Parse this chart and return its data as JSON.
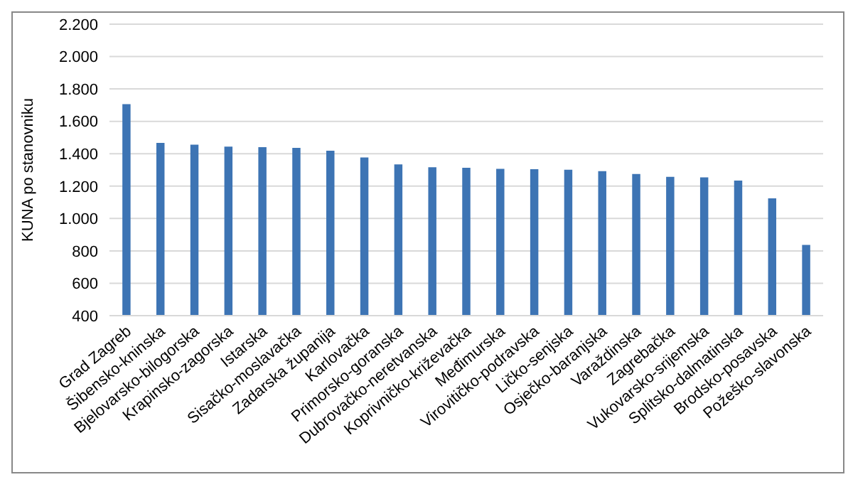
{
  "chart_data": {
    "type": "bar",
    "ylabel": "KUNA po stanovniku",
    "categories": [
      "Grad Zagreb",
      "Šibensko-kninska",
      "Bjelovarsko-bilogorska",
      "Krapinsko-zagorska",
      "Istarska",
      "Sisačko-moslavačka",
      "Zadarska županija",
      "Karlovačka",
      "Primorsko-goranska",
      "Dubrovačko-neretvanska",
      "Koprivničko-križevačka",
      "Međimurska",
      "Virovitičko-podravska",
      "Ličko-senjska",
      "Osječko-baranjska",
      "Varaždinska",
      "Zagrebačka",
      "Vukovarsko-srijemska",
      "Splitsko-dalmatinska",
      "Brodsko-posavska",
      "Požeško-slavonska"
    ],
    "values": [
      1706,
      1467,
      1456,
      1444,
      1440,
      1436,
      1418,
      1377,
      1334,
      1316,
      1313,
      1307,
      1304,
      1301,
      1292,
      1275,
      1257,
      1254,
      1234,
      1124,
      837
    ],
    "color": "#3d74b4",
    "ylim": [
      400,
      2200
    ],
    "yticks": [
      {
        "value": 400,
        "label": "400"
      },
      {
        "value": 600,
        "label": "600"
      },
      {
        "value": 800,
        "label": "800"
      },
      {
        "value": 1000,
        "label": "1.000"
      },
      {
        "value": 1200,
        "label": "1.200"
      },
      {
        "value": 1400,
        "label": "1.400"
      },
      {
        "value": 1600,
        "label": "1.600"
      },
      {
        "value": 1800,
        "label": "1.800"
      },
      {
        "value": 2000,
        "label": "2.000"
      },
      {
        "value": 2200,
        "label": "2.200"
      }
    ],
    "grid": "y",
    "legend": false
  }
}
